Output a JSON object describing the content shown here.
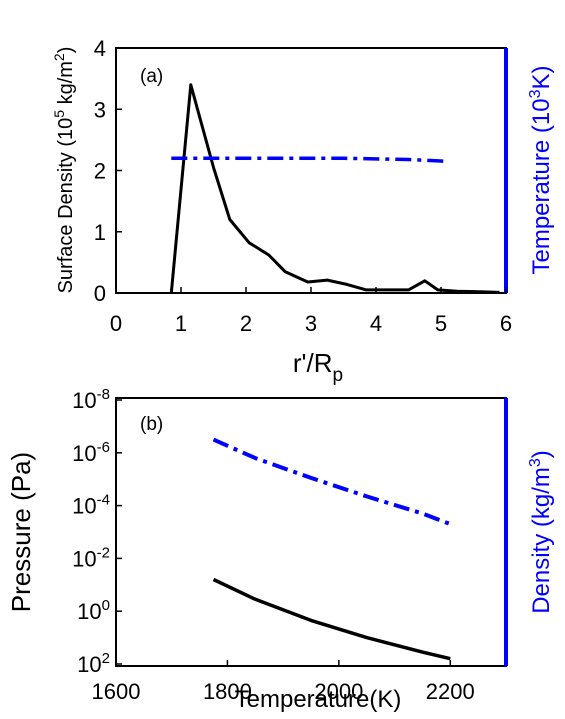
{
  "chart_data": [
    {
      "panel_label": "(a)",
      "type": "line",
      "xlabel": "r'/R",
      "xlabel_sub": "p",
      "xlim": [
        0,
        6
      ],
      "xticks": [
        "0",
        "1",
        "2",
        "3",
        "4",
        "5",
        "6"
      ],
      "ylabel_left": "Surface Density (10",
      "ylabel_left_sup1": "5",
      "ylabel_left_mid": " kg/m",
      "ylabel_left_sup2": "2",
      "ylabel_left_end": ")",
      "ylim_left": [
        0,
        4
      ],
      "yticks_left": [
        "0",
        "1",
        "2",
        "3",
        "4"
      ],
      "ylabel_right": "Temperature (10",
      "ylabel_right_sup": "3",
      "ylabel_right_end": "K)",
      "right_axis_color": "#0000ff",
      "series": [
        {
          "axis": "left",
          "color": "#000000",
          "style": "solid",
          "x": [
            0.85,
            1.15,
            1.5,
            1.75,
            2.05,
            2.35,
            2.6,
            2.95,
            3.25,
            3.55,
            3.85,
            4.15,
            4.5,
            4.75,
            4.95,
            5.25,
            5.6,
            5.9
          ],
          "y": [
            0.0,
            3.4,
            2.05,
            1.2,
            0.82,
            0.62,
            0.35,
            0.18,
            0.21,
            0.14,
            0.05,
            0.05,
            0.05,
            0.2,
            0.05,
            0.03,
            0.02,
            0.01
          ]
        },
        {
          "axis": "right",
          "color": "#0000ff",
          "style": "dashdot",
          "x": [
            0.85,
            3.5,
            4.5,
            5.1
          ],
          "y": [
            2.2,
            2.2,
            2.18,
            2.15
          ]
        }
      ]
    },
    {
      "panel_label": "(b)",
      "type": "line",
      "xlabel": "Temperature(K)",
      "xlim": [
        1600,
        2300
      ],
      "xticks": [
        "1600",
        "1800",
        "2000",
        "2200"
      ],
      "ylabel_left": "Pressure (Pa)",
      "ylim_left_log10": [
        2,
        -8
      ],
      "yticks_left": [
        {
          "base": "10",
          "exp": "-8"
        },
        {
          "base": "10",
          "exp": "-6"
        },
        {
          "base": "10",
          "exp": "-4"
        },
        {
          "base": "10",
          "exp": "-2"
        },
        {
          "base": "10",
          "exp": "0"
        },
        {
          "base": "10",
          "exp": "2"
        }
      ],
      "ylabel_right": "Density (kg/m",
      "ylabel_right_sup": "3",
      "ylabel_right_end": ")",
      "right_axis_color": "#0000ff",
      "series": [
        {
          "color": "#000000",
          "style": "solid",
          "x": [
            1775,
            1850,
            1950,
            2050,
            2150,
            2200
          ],
          "y_log10": [
            -1.2,
            -0.45,
            0.35,
            1.0,
            1.55,
            1.8
          ]
        },
        {
          "color": "#0000ff",
          "style": "dashdot",
          "x": [
            1775,
            1850,
            1950,
            2050,
            2150,
            2200
          ],
          "y_log10": [
            -6.5,
            -5.8,
            -5.05,
            -4.35,
            -3.7,
            -3.3
          ]
        }
      ]
    }
  ]
}
